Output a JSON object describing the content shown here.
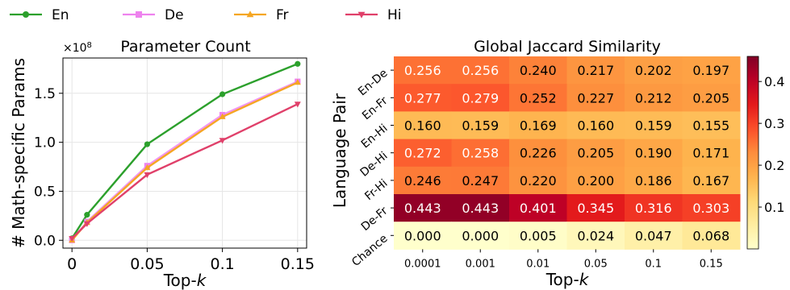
{
  "legend": {
    "placement": "top-left",
    "items": [
      {
        "label": "En",
        "color": "#2ca02c",
        "marker": "circle"
      },
      {
        "label": "De",
        "color": "#ee82ee",
        "marker": "square"
      },
      {
        "label": "Fr",
        "color": "#f5a623",
        "marker": "triangle-up"
      },
      {
        "label": "Hi",
        "color": "#e0406a",
        "marker": "triangle-down"
      }
    ]
  },
  "chart_data": [
    {
      "type": "line",
      "title": "Parameter Count",
      "xlabel": "Top-k",
      "ylabel": "# Math-specific Params",
      "y_scale_label": "×10^8",
      "x": [
        0,
        0.01,
        0.05,
        0.1,
        0.15
      ],
      "x_ticks": [
        "0",
        "0.05",
        "0.1",
        "0.15"
      ],
      "x_tick_values": [
        0,
        0.05,
        0.1,
        0.15
      ],
      "y_ticks": [
        "0.0",
        "0.5",
        "1.0",
        "1.5"
      ],
      "y_tick_values": [
        0.0,
        0.5,
        1.0,
        1.5
      ],
      "xlim": [
        -0.006,
        0.156
      ],
      "ylim": [
        -0.08,
        1.86
      ],
      "grid": true,
      "series": [
        {
          "name": "En",
          "values": [
            0.02,
            0.26,
            0.98,
            1.49,
            1.8
          ]
        },
        {
          "name": "De",
          "values": [
            0.0,
            0.19,
            0.76,
            1.28,
            1.62
          ]
        },
        {
          "name": "Fr",
          "values": [
            0.0,
            0.18,
            0.74,
            1.26,
            1.61
          ]
        },
        {
          "name": "Hi",
          "values": [
            0.02,
            0.17,
            0.67,
            1.02,
            1.39
          ]
        }
      ]
    },
    {
      "type": "heatmap",
      "title": "Global Jaccard Similarity",
      "xlabel": "Top-k",
      "ylabel": "Language Pair",
      "x_categories": [
        "0.0001",
        "0.001",
        "0.01",
        "0.05",
        "0.1",
        "0.15"
      ],
      "y_categories": [
        "En-De",
        "En-Fr",
        "En-Hi",
        "De-Hi",
        "Fr-Hi",
        "De-Fr",
        "Chance"
      ],
      "values": [
        [
          0.256,
          0.256,
          0.24,
          0.217,
          0.202,
          0.197
        ],
        [
          0.277,
          0.279,
          0.252,
          0.227,
          0.212,
          0.205
        ],
        [
          0.16,
          0.159,
          0.169,
          0.16,
          0.159,
          0.155
        ],
        [
          0.272,
          0.258,
          0.226,
          0.205,
          0.19,
          0.171
        ],
        [
          0.246,
          0.247,
          0.22,
          0.2,
          0.186,
          0.167
        ],
        [
          0.443,
          0.443,
          0.401,
          0.345,
          0.316,
          0.303
        ],
        [
          0.0,
          0.0,
          0.005,
          0.024,
          0.047,
          0.068
        ]
      ],
      "colorbar": {
        "colormap": "YlOrRd",
        "range": [
          0,
          0.46
        ],
        "ticks": [
          "0.1",
          "0.2",
          "0.3",
          "0.4"
        ],
        "tick_values": [
          0.1,
          0.2,
          0.3,
          0.4
        ]
      }
    }
  ]
}
